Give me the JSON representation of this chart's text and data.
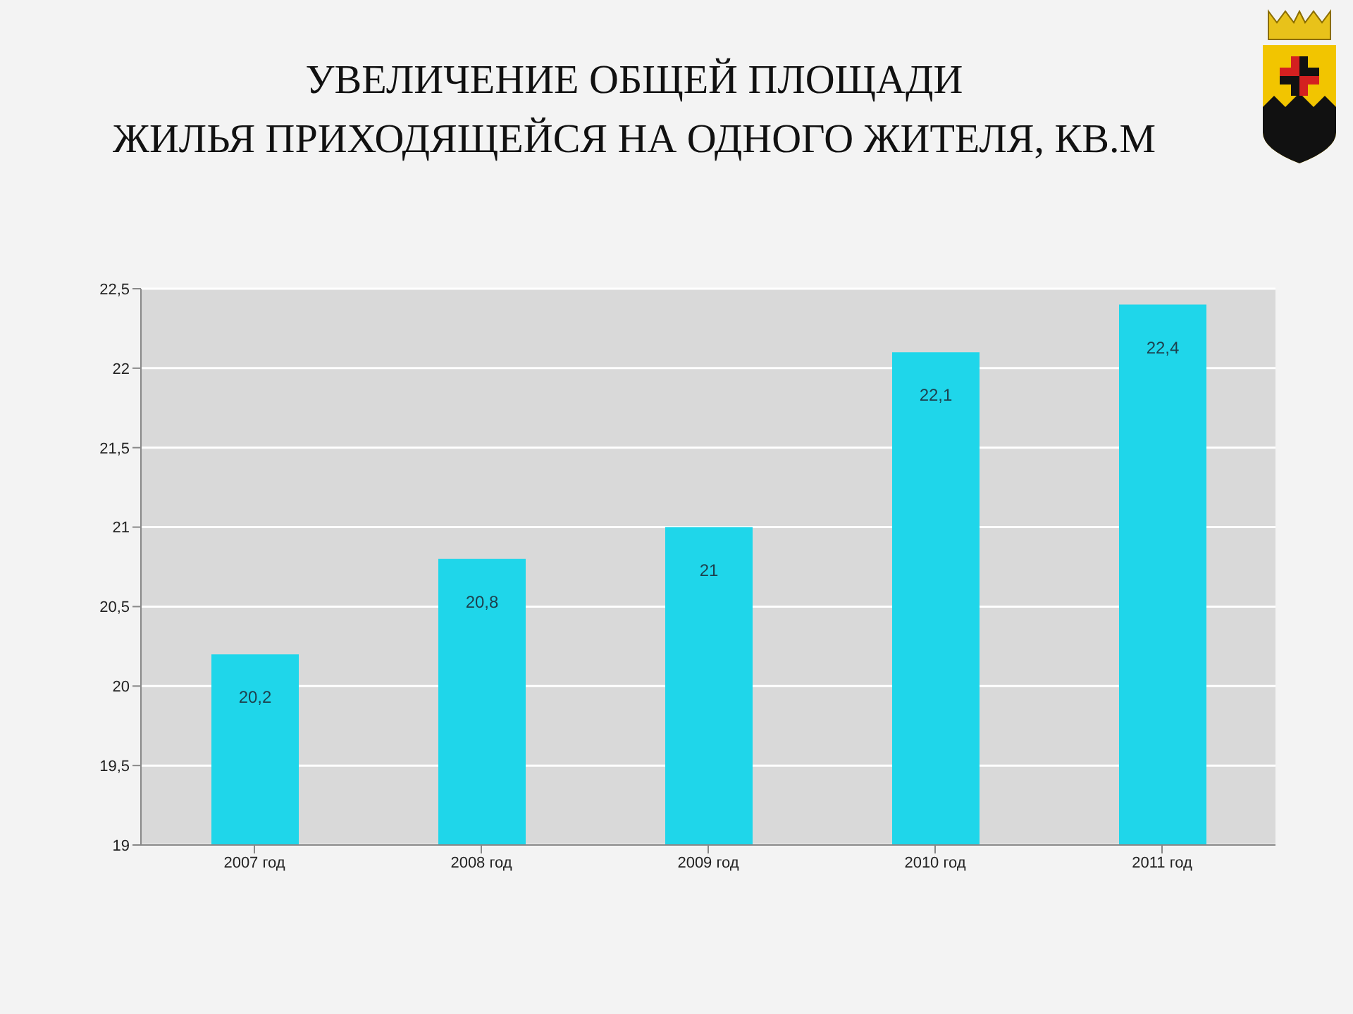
{
  "chart_data": {
    "type": "bar",
    "title": "УВЕЛИЧЕНИЕ ОБЩЕЙ ПЛОЩАДИ\nЖИЛЬЯ ПРИХОДЯЩЕЙСЯ НА ОДНОГО ЖИТЕЛЯ, КВ.М",
    "categories": [
      "2007 год",
      "2008 год",
      "2009 год",
      "2010 год",
      "2011 год"
    ],
    "values": [
      20.2,
      20.8,
      21,
      22.1,
      22.4
    ],
    "color": "#1fd6ea",
    "value_labels": [
      "20,2",
      "20,8",
      "21",
      "22,1",
      "22,4"
    ],
    "ylim": [
      19,
      22.5
    ],
    "yticks": [
      19,
      {
        "value": 19.5,
        "label": "19,5"
      },
      20,
      {
        "value": 20.5,
        "label": "20,5"
      },
      21,
      {
        "value": 21.5,
        "label": "21,5"
      },
      22,
      {
        "value": 22.5,
        "label": "22,5"
      }
    ],
    "grid": "y"
  }
}
